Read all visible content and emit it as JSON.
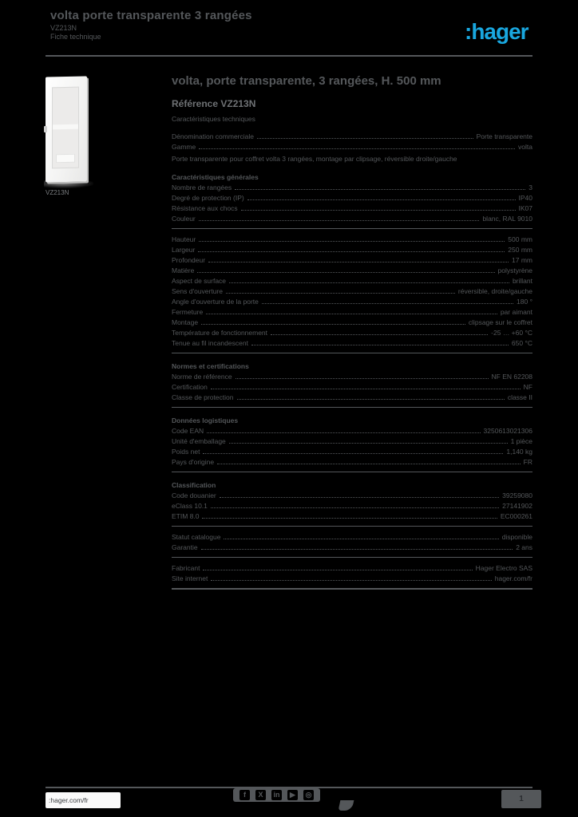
{
  "colors": {
    "background": "#000000",
    "text_gray": "#54575A",
    "logo_blue": "#19A7DF",
    "door_white": "#F4F4F3"
  },
  "header": {
    "title": "volta porte transparente 3 rangées",
    "reference": "VZ213N",
    "doc_label": "Fiche technique",
    "logo_text": ":hager"
  },
  "product_image": {
    "caption": "VZ213N",
    "alt": "porte-transparente"
  },
  "main": {
    "title": "volta, porte transparente, 3 rangées, H. 500 mm",
    "reference": "Référence VZ213N",
    "intro": "Caractéristiques techniques",
    "sections": [
      {
        "heading": "",
        "rows": [
          {
            "label": "Dénomination commerciale",
            "value": "Porte transparente"
          },
          {
            "label": "Gamme",
            "value": "volta"
          }
        ],
        "text": "Porte transparente pour coffret volta 3 rangées, montage par clipsage, réversible droite/gauche",
        "separator": false
      },
      {
        "heading": "Caractéristiques générales",
        "rows": [
          {
            "label": "Nombre de rangées",
            "value": "3"
          },
          {
            "label": "Degré de protection (IP)",
            "value": "IP40"
          },
          {
            "label": "Résistance aux chocs",
            "value": "IK07"
          },
          {
            "label": "Couleur",
            "value": "blanc, RAL 9010"
          }
        ],
        "text": "",
        "separator": true
      },
      {
        "heading": "",
        "rows": [
          {
            "label": "Hauteur",
            "value": "500 mm"
          },
          {
            "label": "Largeur",
            "value": "250 mm"
          },
          {
            "label": "Profondeur",
            "value": "17 mm"
          },
          {
            "label": "Matière",
            "value": "polystyrène"
          },
          {
            "label": "Aspect de surface",
            "value": "brillant"
          },
          {
            "label": "Sens d'ouverture",
            "value": "réversible, droite/gauche"
          },
          {
            "label": "Angle d'ouverture de la porte",
            "value": "180 °"
          },
          {
            "label": "Fermeture",
            "value": "par aimant"
          },
          {
            "label": "Montage",
            "value": "clipsage sur le coffret"
          },
          {
            "label": "Température de fonctionnement",
            "value": "-25 … +60 °C"
          },
          {
            "label": "Tenue au fil incandescent",
            "value": "650 °C"
          }
        ],
        "text": "",
        "separator": true
      },
      {
        "heading": "Normes et certifications",
        "rows": [
          {
            "label": "Norme de référence",
            "value": "NF EN 62208"
          },
          {
            "label": "Certification",
            "value": "NF"
          },
          {
            "label": "Classe de protection",
            "value": "classe II"
          }
        ],
        "text": "",
        "separator": true
      },
      {
        "heading": "Données logistiques",
        "rows": [
          {
            "label": "Code EAN",
            "value": "3250613021306"
          },
          {
            "label": "Unité d'emballage",
            "value": "1 pièce"
          },
          {
            "label": "Poids net",
            "value": "1,140 kg"
          },
          {
            "label": "Pays d'origine",
            "value": "FR"
          }
        ],
        "text": "",
        "separator": true
      },
      {
        "heading": "Classification",
        "rows": [
          {
            "label": "Code douanier",
            "value": "39259080"
          },
          {
            "label": "eClass 10.1",
            "value": "27141902"
          },
          {
            "label": "ETIM 8.0",
            "value": "EC000261"
          }
        ],
        "text": "",
        "separator": true
      },
      {
        "heading": "",
        "rows": [
          {
            "label": "Statut catalogue",
            "value": "disponible"
          },
          {
            "label": "Garantie",
            "value": "2 ans"
          }
        ],
        "text": "",
        "separator": true
      },
      {
        "heading": "",
        "rows": [
          {
            "label": "Fabricant",
            "value": "Hager Electro SAS"
          },
          {
            "label": "Site internet",
            "value": "hager.com/fr"
          }
        ],
        "text": "",
        "separator": true,
        "final": true
      }
    ]
  },
  "footer": {
    "url": ":hager.com/fr",
    "page_number": "1",
    "social_icons": [
      {
        "name": "facebook-icon",
        "glyph": "f"
      },
      {
        "name": "x-icon",
        "glyph": "X"
      },
      {
        "name": "linkedin-icon",
        "glyph": "in"
      },
      {
        "name": "youtube-icon",
        "glyph": "▶"
      },
      {
        "name": "instagram-icon",
        "glyph": "◎"
      }
    ]
  }
}
